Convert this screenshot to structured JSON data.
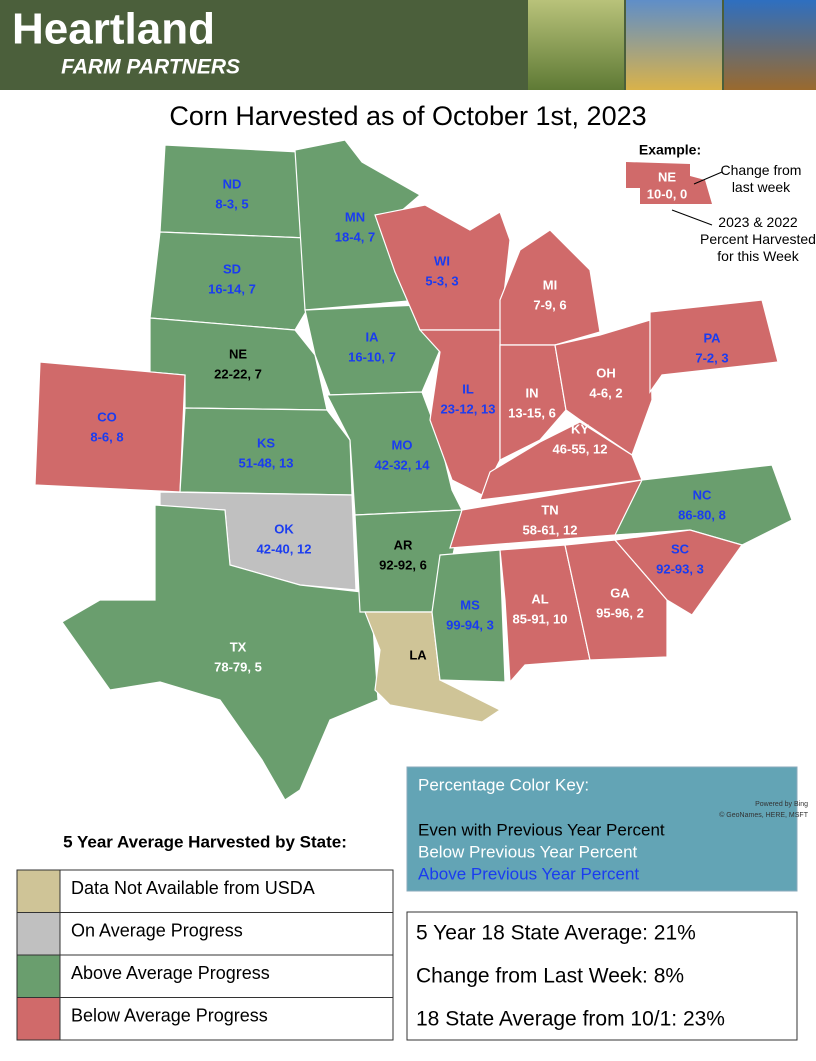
{
  "header": {
    "brand": "Heartland",
    "subbrand": "FARM PARTNERS"
  },
  "title": "Corn Harvested as of October 1st, 2023",
  "example": {
    "heading": "Example:",
    "state": "NE",
    "numbers": "10-0, 0",
    "fill": "#d06a6a",
    "label_color": "#ffffff",
    "change_note": "Change from last week",
    "percent_note": "2023 & 2022 Percent Harvested for this Week"
  },
  "states": [
    {
      "abbr": "ND",
      "numbers": "8-3, 5",
      "fill": "#6a9e6e",
      "label_color": "#1a3cf0"
    },
    {
      "abbr": "SD",
      "numbers": "16-14, 7",
      "fill": "#6a9e6e",
      "label_color": "#1a3cf0"
    },
    {
      "abbr": "NE",
      "numbers": "22-22, 7",
      "fill": "#6a9e6e",
      "label_color": "#000000"
    },
    {
      "abbr": "CO",
      "numbers": "8-6, 8",
      "fill": "#d06a6a",
      "label_color": "#1a3cf0"
    },
    {
      "abbr": "KS",
      "numbers": "51-48, 13",
      "fill": "#6a9e6e",
      "label_color": "#1a3cf0"
    },
    {
      "abbr": "OK",
      "numbers": "42-40, 12",
      "fill": "#c0c0c0",
      "label_color": "#1a3cf0"
    },
    {
      "abbr": "TX",
      "numbers": "78-79, 5",
      "fill": "#6a9e6e",
      "label_color": "#ffffff"
    },
    {
      "abbr": "MN",
      "numbers": "18-4, 7",
      "fill": "#6a9e6e",
      "label_color": "#1a3cf0"
    },
    {
      "abbr": "IA",
      "numbers": "16-10, 7",
      "fill": "#6a9e6e",
      "label_color": "#1a3cf0"
    },
    {
      "abbr": "MO",
      "numbers": "42-32, 14",
      "fill": "#6a9e6e",
      "label_color": "#1a3cf0"
    },
    {
      "abbr": "AR",
      "numbers": "92-92, 6",
      "fill": "#6a9e6e",
      "label_color": "#000000"
    },
    {
      "abbr": "LA",
      "fill": "#cfc497",
      "label_color": "#000000"
    },
    {
      "abbr": "MS",
      "numbers": "99-94, 3",
      "fill": "#6a9e6e",
      "label_color": "#1a3cf0"
    },
    {
      "abbr": "WI",
      "numbers": "5-3, 3",
      "fill": "#d06a6a",
      "label_color": "#1a3cf0"
    },
    {
      "abbr": "MI",
      "numbers": "7-9, 6",
      "fill": "#d06a6a",
      "label_color": "#ffffff"
    },
    {
      "abbr": "IL",
      "numbers": "23-12, 13",
      "fill": "#d06a6a",
      "label_color": "#1a3cf0"
    },
    {
      "abbr": "IN",
      "numbers": "13-15, 6",
      "fill": "#d06a6a",
      "label_color": "#ffffff"
    },
    {
      "abbr": "OH",
      "numbers": "4-6, 2",
      "fill": "#d06a6a",
      "label_color": "#ffffff"
    },
    {
      "abbr": "PA",
      "numbers": "7-2, 3",
      "fill": "#d06a6a",
      "label_color": "#1a3cf0"
    },
    {
      "abbr": "KY",
      "numbers": "46-55, 12",
      "fill": "#d06a6a",
      "label_color": "#ffffff"
    },
    {
      "abbr": "TN",
      "numbers": "58-61, 12",
      "fill": "#d06a6a",
      "label_color": "#ffffff"
    },
    {
      "abbr": "NC",
      "numbers": "86-80, 8",
      "fill": "#6a9e6e",
      "label_color": "#1a3cf0"
    },
    {
      "abbr": "AL",
      "numbers": "85-91, 10",
      "fill": "#d06a6a",
      "label_color": "#ffffff"
    },
    {
      "abbr": "GA",
      "numbers": "95-96, 2",
      "fill": "#d06a6a",
      "label_color": "#ffffff"
    },
    {
      "abbr": "SC",
      "numbers": "92-93, 3",
      "fill": "#d06a6a",
      "label_color": "#1a3cf0"
    }
  ],
  "attribution": [
    "Powered by Bing",
    "© GeoNames, HERE, MSFT"
  ],
  "color_key": {
    "title": "Percentage Color Key:",
    "items": [
      {
        "text": "Even with Previous Year Percent",
        "color": "#000000"
      },
      {
        "text": "Below Previous Year Percent",
        "color": "#ffffff"
      },
      {
        "text": "Above Previous Year Percent",
        "color": "#1a3cf0"
      }
    ]
  },
  "legend": {
    "title": "5 Year Average Harvested by State:",
    "items": [
      {
        "text": "Data Not Available from USDA",
        "color": "#cfc497"
      },
      {
        "text": "On Average Progress",
        "color": "#c0c0c0"
      },
      {
        "text": "Above Average Progress",
        "color": "#6a9e6e"
      },
      {
        "text": "Below Average Progress",
        "color": "#d06a6a"
      }
    ]
  },
  "stats": [
    "5 Year 18 State Average: 21%",
    "Change from Last Week: 8%",
    "18 State Average from 10/1: 23%"
  ]
}
